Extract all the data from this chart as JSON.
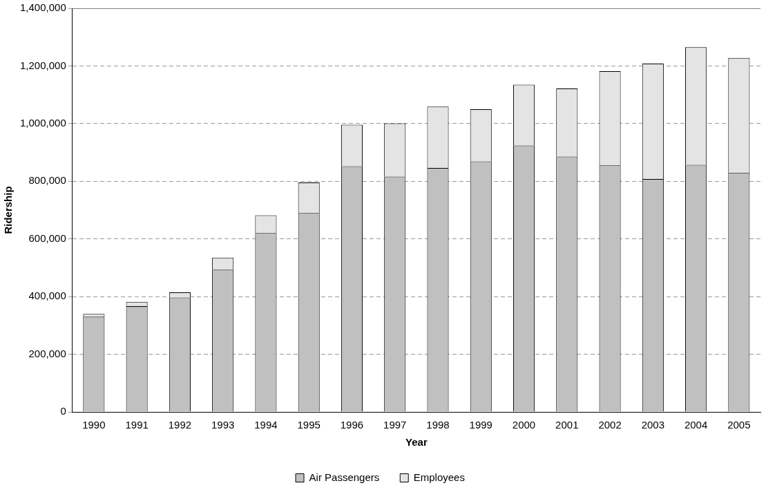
{
  "chart_data": {
    "type": "bar",
    "xlabel": "Year",
    "ylabel": "Ridership",
    "categories": [
      "1990",
      "1991",
      "1992",
      "1993",
      "1994",
      "1995",
      "1996",
      "1997",
      "1998",
      "1999",
      "2000",
      "2001",
      "2002",
      "2003",
      "2004",
      "2005"
    ],
    "series": [
      {
        "name": "Air Passengers",
        "color": "#c0c0c0",
        "values": [
          330000,
          367000,
          397000,
          493000,
          620000,
          690000,
          852000,
          816000,
          846000,
          869000,
          924000,
          886000,
          855000,
          808000,
          857000,
          830000
        ]
      },
      {
        "name": "Employees",
        "color": "#e4e4e4",
        "values": [
          10000,
          15000,
          18000,
          42000,
          62000,
          106000,
          144000,
          185000,
          213000,
          181000,
          211000,
          236000,
          327000,
          400000,
          408000,
          398000
        ]
      }
    ],
    "stacked": true,
    "ylim": [
      0,
      1400000
    ],
    "yticks": [
      0,
      {
        "value": 200000,
        "label": "200,000"
      },
      {
        "value": 400000,
        "label": "400,000"
      },
      {
        "value": 600000,
        "label": "600,000"
      },
      {
        "value": 800000,
        "label": "800,000"
      },
      {
        "value": 1000000,
        "label": "1,000,000"
      },
      {
        "value": 1200000,
        "label": "1,200,000"
      },
      {
        "value": 1400000,
        "label": "1,400,000"
      }
    ],
    "grid": "y",
    "legend": "bottom"
  }
}
